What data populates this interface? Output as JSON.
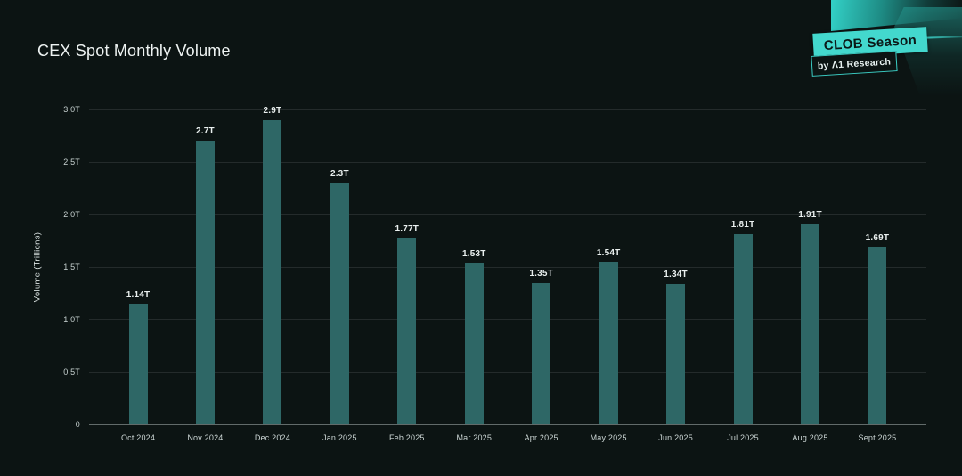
{
  "title": "CEX Spot Monthly Volume",
  "logo": {
    "primary": "CLOB Season",
    "secondary": "by Λ1 Research"
  },
  "colors": {
    "background": "#0c1413",
    "bar": "#2e6766",
    "accent_teal": "#43d8cd",
    "value_label": "#eaf0ef",
    "tick_label": "#c9d3d2",
    "gridline": "rgba(255,255,255,0.10)",
    "baseline": "rgba(220,228,227,0.42)"
  },
  "chart_data": {
    "type": "bar",
    "title": "CEX Spot Monthly Volume",
    "categories": [
      "Oct 2024",
      "Nov 2024",
      "Dec 2024",
      "Jan 2025",
      "Feb 2025",
      "Mar 2025",
      "Apr 2025",
      "May 2025",
      "Jun 2025",
      "Jul 2025",
      "Aug 2025",
      "Sept 2025"
    ],
    "values": [
      1.14,
      2.7,
      2.9,
      2.3,
      1.77,
      1.53,
      1.35,
      1.54,
      1.34,
      1.81,
      1.91,
      1.69
    ],
    "value_labels": [
      "1.14T",
      "2.7T",
      "2.9T",
      "2.3T",
      "1.77T",
      "1.53T",
      "1.35T",
      "1.54T",
      "1.34T",
      "1.81T",
      "1.91T",
      "1.69T"
    ],
    "xlabel": "",
    "ylabel": "Volume (Trillions)",
    "ylim": [
      0,
      3.0
    ],
    "yticks": [
      0,
      0.5,
      1.0,
      1.5,
      2.0,
      2.5,
      3.0
    ],
    "ytick_labels": [
      "0",
      "0.5T",
      "1.0T",
      "1.5T",
      "2.0T",
      "2.5T",
      "3.0T"
    ],
    "grid": "horizontal",
    "legend": "none"
  }
}
